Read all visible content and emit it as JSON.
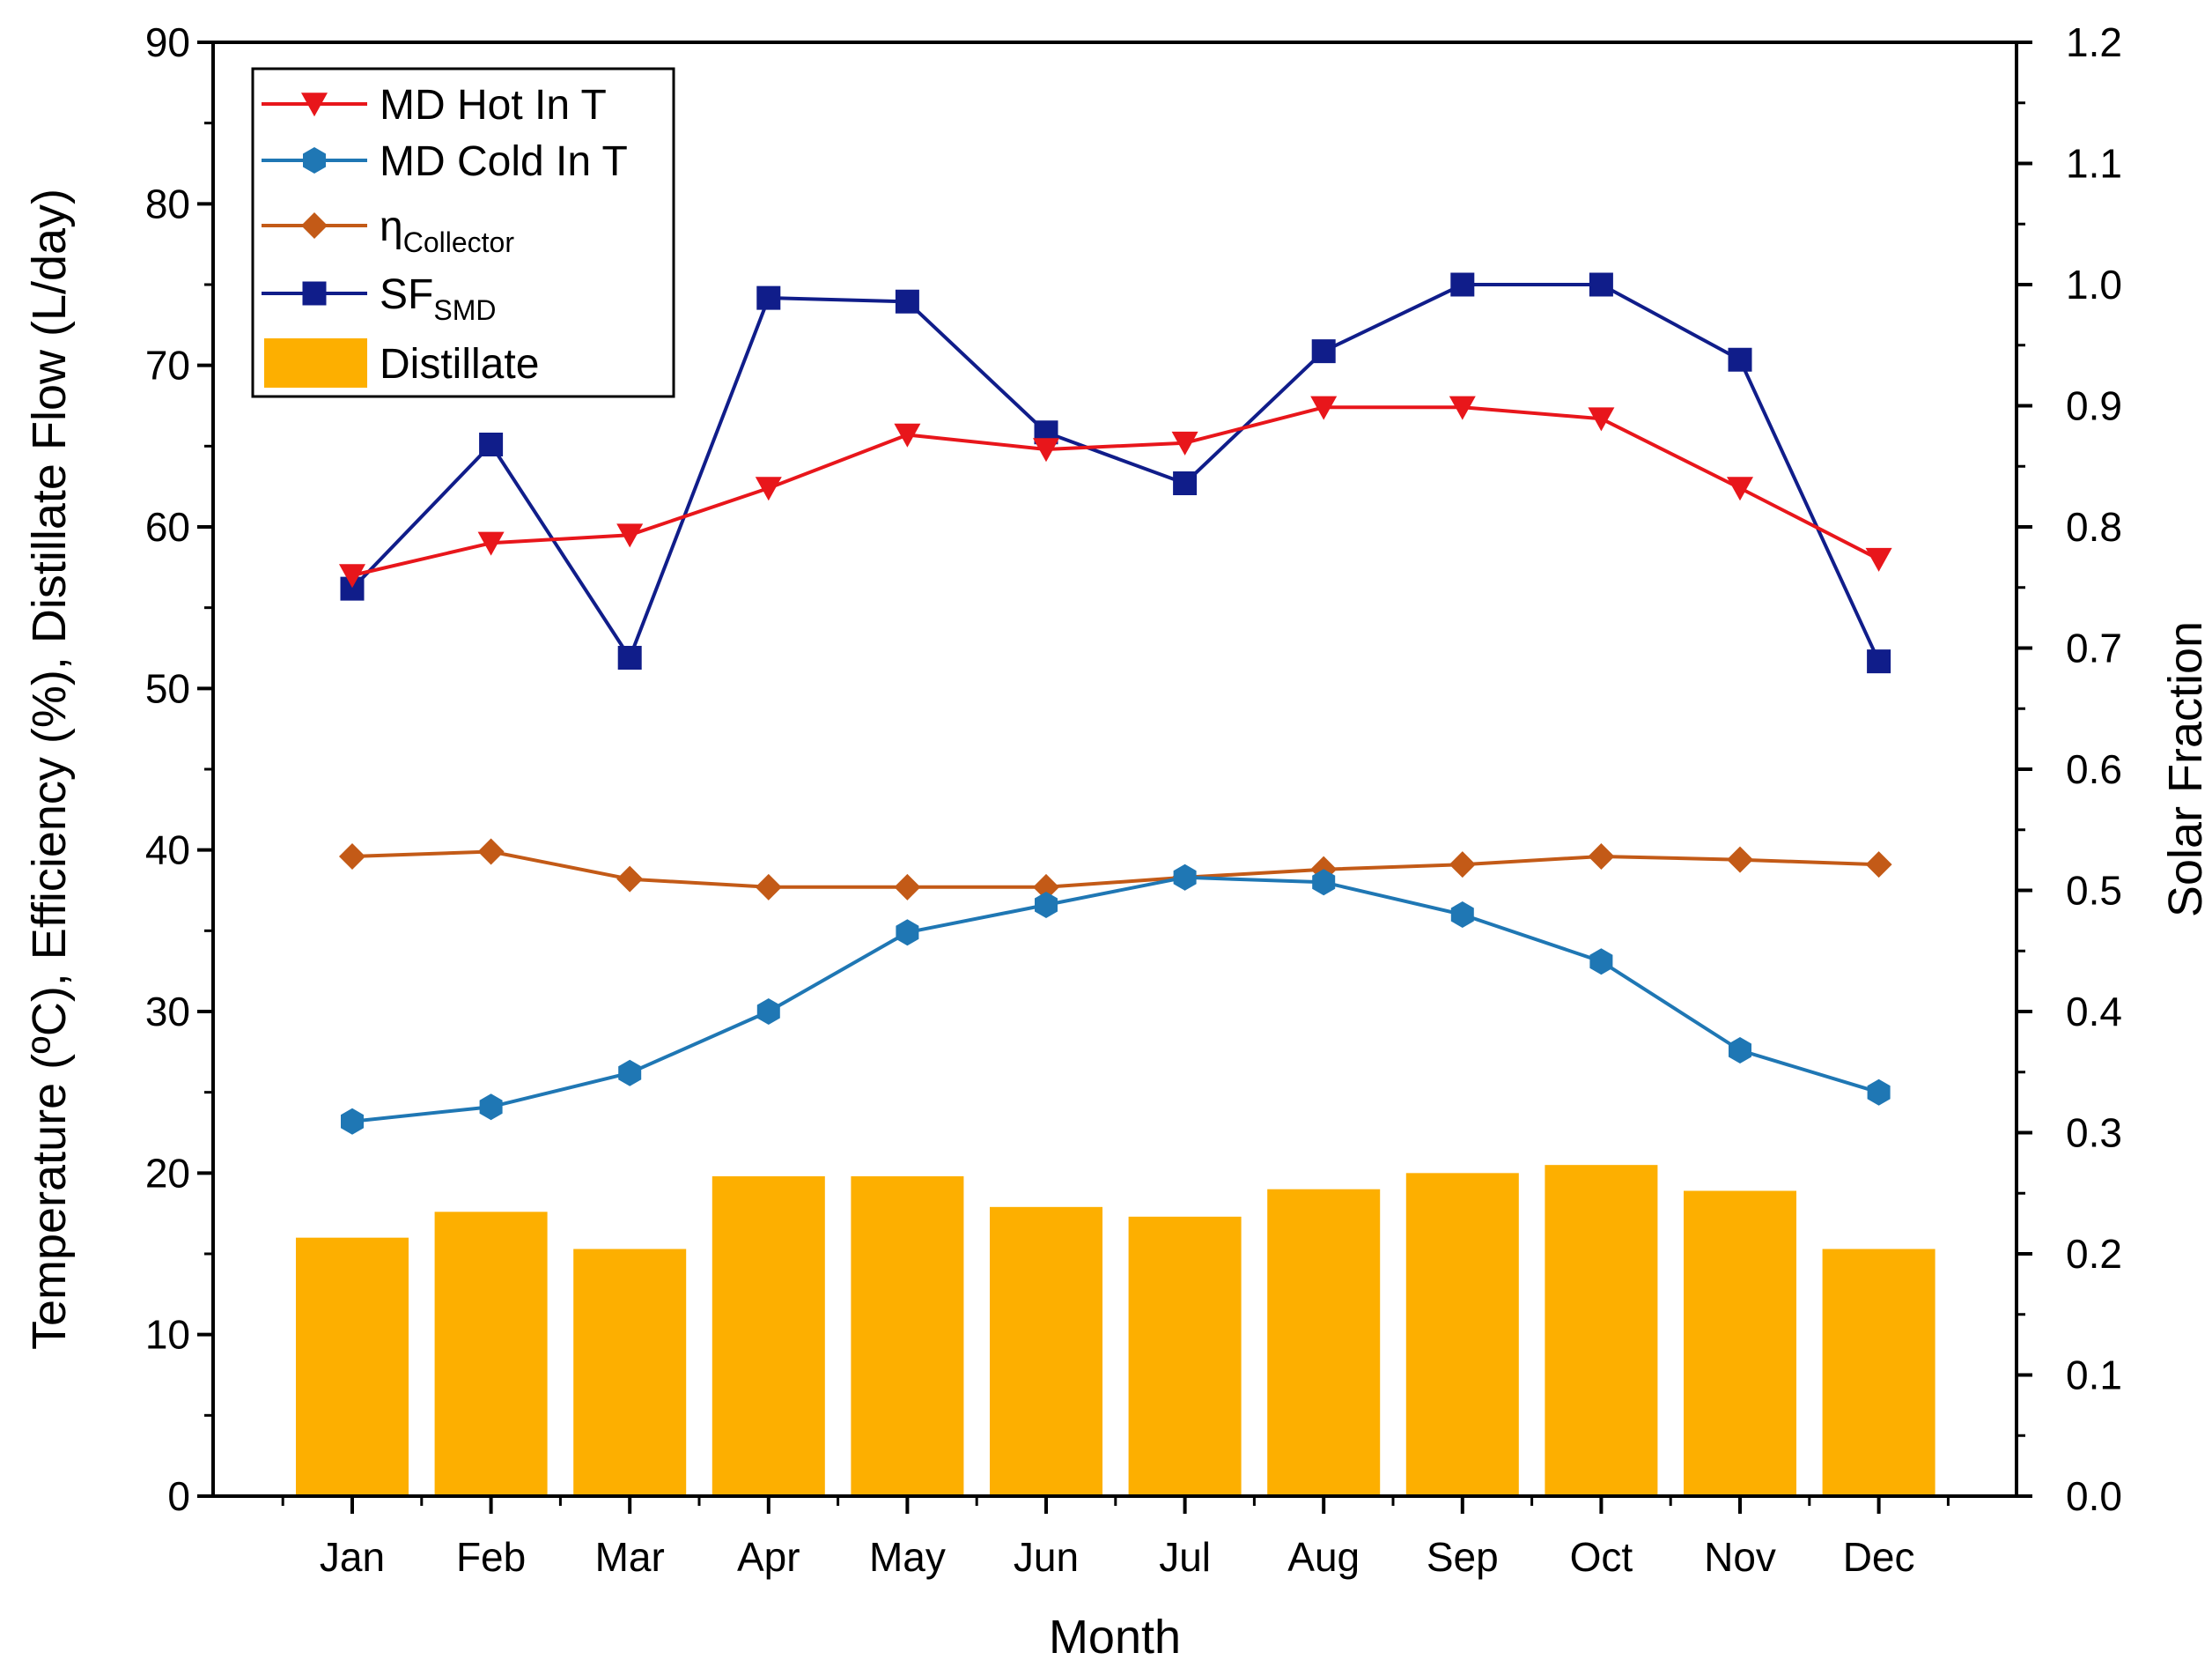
{
  "chart_data": {
    "type": "bar+line",
    "title": "",
    "xlabel": "Month",
    "ylabel_left": "Temperature (ºC), Efficiency (%), Distillate Flow (L/day)",
    "ylabel_right": "Solar Fraction",
    "categories": [
      "Jan",
      "Feb",
      "Mar",
      "Apr",
      "May",
      "Jun",
      "Jul",
      "Aug",
      "Sep",
      "Oct",
      "Nov",
      "Dec"
    ],
    "ylim_left": [
      0,
      90
    ],
    "yticks_left": [
      "0",
      "10",
      "20",
      "30",
      "40",
      "50",
      "60",
      "70",
      "80",
      "90"
    ],
    "ylim_right": [
      0,
      1.2
    ],
    "yticks_right": [
      "0.0",
      "0.1",
      "0.2",
      "0.3",
      "0.4",
      "0.5",
      "0.6",
      "0.7",
      "0.8",
      "0.9",
      "1.0",
      "1.1",
      "1.2"
    ],
    "legend_position": "top-left",
    "series": [
      {
        "name": "MD Hot In T",
        "legend": "MD Hot In T",
        "legend_sub": "",
        "type": "line",
        "marker": "triangle-down",
        "axis": "left",
        "color": "#e8161b",
        "values": [
          57.0,
          59.0,
          59.5,
          62.4,
          65.7,
          64.8,
          65.2,
          67.4,
          67.4,
          66.7,
          62.4,
          58.0
        ]
      },
      {
        "name": "MD Cold In T",
        "legend": "MD Cold In T",
        "legend_sub": "",
        "type": "line",
        "marker": "hexagon",
        "axis": "left",
        "color": "#1f77b4",
        "values": [
          23.2,
          24.1,
          26.2,
          30.0,
          34.9,
          36.6,
          38.3,
          38.0,
          36.0,
          33.1,
          27.6,
          25.0
        ]
      },
      {
        "name": "ηCollector",
        "legend": "η",
        "legend_sub": "Collector",
        "type": "line",
        "marker": "diamond",
        "axis": "left",
        "color": "#c35a17",
        "values": [
          39.6,
          39.9,
          38.2,
          37.7,
          37.7,
          37.7,
          38.3,
          38.8,
          39.1,
          39.6,
          39.4,
          39.1
        ]
      },
      {
        "name": "SFSMD",
        "legend": "SF",
        "legend_sub": "SMD",
        "type": "line",
        "marker": "square",
        "axis": "right",
        "color": "#101d8a",
        "values": [
          0.749,
          0.868,
          0.692,
          0.989,
          0.986,
          0.878,
          0.836,
          0.945,
          1.0,
          1.0,
          0.938,
          0.689
        ]
      },
      {
        "name": "Distillate",
        "legend": "Distillate",
        "legend_sub": "",
        "type": "bar",
        "axis": "left",
        "color": "#fdaf00",
        "values": [
          16.0,
          17.6,
          15.3,
          19.8,
          19.8,
          17.9,
          17.3,
          19.0,
          20.0,
          20.5,
          18.9,
          15.3
        ]
      }
    ]
  }
}
